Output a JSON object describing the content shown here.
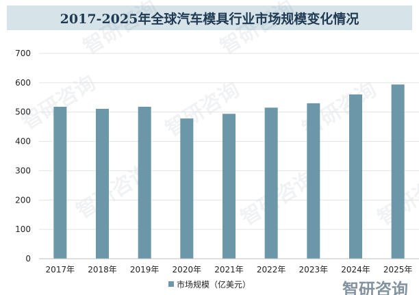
{
  "chart_data": {
    "type": "bar",
    "title": "2017-2025年全球汽车模具行业市场规模变化情况",
    "categories": [
      "2017年",
      "2018年",
      "2019年",
      "2020年",
      "2021年",
      "2022年",
      "2023年",
      "2024年",
      "2025年"
    ],
    "series": [
      {
        "name": "市场规模（亿美元）",
        "values": [
          518,
          511,
          518,
          478,
          494,
          515,
          530,
          560,
          594
        ]
      }
    ],
    "ylim": [
      0,
      700
    ],
    "yticks": [
      "0",
      "100",
      "200",
      "300",
      "400",
      "500",
      "600",
      "700"
    ],
    "grid": true,
    "legend_position": "bottom",
    "colors": {
      "bar": "#6b97a8",
      "title_bg": "#d6e4ea",
      "title_text": "#1f3a52",
      "grid": "#e3e3e3"
    }
  },
  "watermark": {
    "text": "智研咨询"
  }
}
